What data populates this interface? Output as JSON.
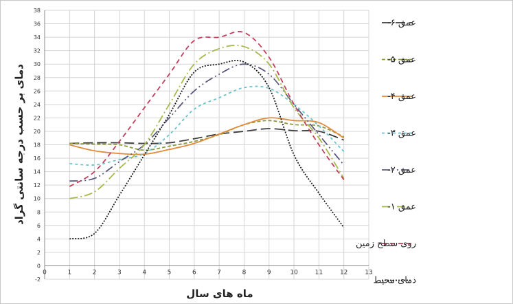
{
  "chart_data": {
    "type": "line",
    "ylabel": "دمای بر حسب درجه سانتی گراد",
    "xlabel": "ماه های سال",
    "xlim": [
      0,
      13
    ],
    "ylim": [
      -2,
      38
    ],
    "xticks": [
      0,
      1,
      2,
      3,
      4,
      5,
      6,
      7,
      8,
      9,
      10,
      11,
      12,
      13
    ],
    "yticks": [
      -2,
      0,
      2,
      4,
      6,
      8,
      10,
      12,
      14,
      16,
      18,
      20,
      22,
      24,
      26,
      28,
      30,
      32,
      34,
      36,
      38
    ],
    "grid": true,
    "legend_position": "right",
    "x": [
      1,
      2,
      3,
      4,
      5,
      6,
      7,
      8,
      9,
      10,
      11,
      12
    ],
    "series": [
      {
        "name": "عمق ۶-",
        "color": "#3d3d3d",
        "dash": "14 6",
        "values": [
          18.2,
          18.3,
          18.3,
          18.2,
          18.3,
          18.9,
          19.6,
          20.0,
          20.4,
          20.1,
          20.0,
          18.7
        ]
      },
      {
        "name": "عمق ۵-",
        "color": "#8a9a3a",
        "dash": "5 3",
        "values": [
          18.2,
          18.1,
          18.0,
          17.2,
          17.8,
          18.5,
          19.5,
          21.0,
          21.6,
          21.0,
          20.8,
          19.2
        ]
      },
      {
        "name": "عمق ۴-",
        "color": "#e08a3a",
        "dash": "",
        "values": [
          18.0,
          17.1,
          16.7,
          16.6,
          17.3,
          18.2,
          19.6,
          21.0,
          22.0,
          21.6,
          21.3,
          19.0
        ]
      },
      {
        "name": "عمق ۳-",
        "color": "#6ac4cf",
        "dash": "4 4",
        "values": [
          15.2,
          15.0,
          15.8,
          16.7,
          19.5,
          23.3,
          25.0,
          26.5,
          26.4,
          24.0,
          20.8,
          17.0
        ]
      },
      {
        "name": "عمق ۲-",
        "color": "#5a5a80",
        "dash": "12 4 2 4 2 4",
        "values": [
          12.6,
          13.0,
          15.5,
          18.0,
          22.0,
          26.0,
          28.5,
          30.0,
          28.5,
          24.0,
          19.5,
          15.0
        ]
      },
      {
        "name": "عمق ۱-",
        "color": "#a8b84a",
        "dash": "12 4 2 4",
        "values": [
          10.0,
          11.0,
          14.5,
          18.0,
          24.0,
          30.0,
          32.3,
          32.6,
          30.0,
          23.5,
          19.0,
          13.0
        ]
      },
      {
        "name": "روی سطح زمین",
        "color": "#c0405e",
        "dash": "7 5",
        "values": [
          11.8,
          14.0,
          18.5,
          23.5,
          28.5,
          33.5,
          34.0,
          34.7,
          31.0,
          24.0,
          18.0,
          12.8
        ]
      },
      {
        "name": "دمای محیط",
        "color": "#1a1a1a",
        "dash": "2 2",
        "values": [
          4.0,
          4.8,
          10.5,
          16.5,
          22.5,
          28.8,
          30.0,
          30.3,
          26.5,
          16.5,
          10.8,
          5.7
        ]
      }
    ]
  }
}
